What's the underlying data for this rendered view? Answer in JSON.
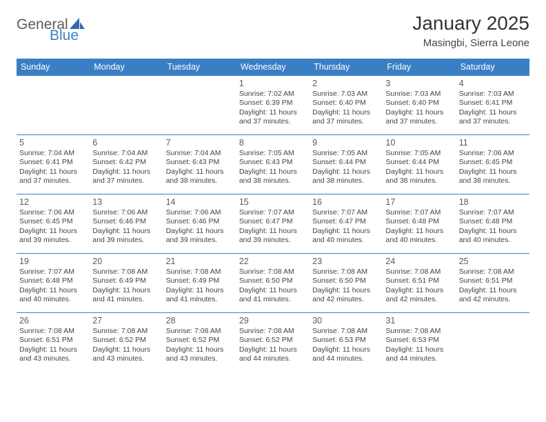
{
  "logo": {
    "general": "General",
    "blue": "Blue"
  },
  "title": "January 2025",
  "location": "Masingbi, Sierra Leone",
  "colors": {
    "header_bg": "#3a7fc4",
    "header_text": "#ffffff",
    "border": "#3a7fc4",
    "text": "#444444",
    "daynum": "#5a5a5a",
    "page_bg": "#ffffff"
  },
  "typography": {
    "title_fontsize": 28,
    "location_fontsize": 15,
    "weekday_fontsize": 12.5,
    "daynum_fontsize": 12.5,
    "info_fontsize": 10.5
  },
  "weekdays": [
    "Sunday",
    "Monday",
    "Tuesday",
    "Wednesday",
    "Thursday",
    "Friday",
    "Saturday"
  ],
  "weeks": [
    [
      null,
      null,
      null,
      {
        "day": "1",
        "sunrise": "Sunrise: 7:02 AM",
        "sunset": "Sunset: 6:39 PM",
        "daylight": "Daylight: 11 hours and 37 minutes."
      },
      {
        "day": "2",
        "sunrise": "Sunrise: 7:03 AM",
        "sunset": "Sunset: 6:40 PM",
        "daylight": "Daylight: 11 hours and 37 minutes."
      },
      {
        "day": "3",
        "sunrise": "Sunrise: 7:03 AM",
        "sunset": "Sunset: 6:40 PM",
        "daylight": "Daylight: 11 hours and 37 minutes."
      },
      {
        "day": "4",
        "sunrise": "Sunrise: 7:03 AM",
        "sunset": "Sunset: 6:41 PM",
        "daylight": "Daylight: 11 hours and 37 minutes."
      }
    ],
    [
      {
        "day": "5",
        "sunrise": "Sunrise: 7:04 AM",
        "sunset": "Sunset: 6:41 PM",
        "daylight": "Daylight: 11 hours and 37 minutes."
      },
      {
        "day": "6",
        "sunrise": "Sunrise: 7:04 AM",
        "sunset": "Sunset: 6:42 PM",
        "daylight": "Daylight: 11 hours and 37 minutes."
      },
      {
        "day": "7",
        "sunrise": "Sunrise: 7:04 AM",
        "sunset": "Sunset: 6:43 PM",
        "daylight": "Daylight: 11 hours and 38 minutes."
      },
      {
        "day": "8",
        "sunrise": "Sunrise: 7:05 AM",
        "sunset": "Sunset: 6:43 PM",
        "daylight": "Daylight: 11 hours and 38 minutes."
      },
      {
        "day": "9",
        "sunrise": "Sunrise: 7:05 AM",
        "sunset": "Sunset: 6:44 PM",
        "daylight": "Daylight: 11 hours and 38 minutes."
      },
      {
        "day": "10",
        "sunrise": "Sunrise: 7:05 AM",
        "sunset": "Sunset: 6:44 PM",
        "daylight": "Daylight: 11 hours and 38 minutes."
      },
      {
        "day": "11",
        "sunrise": "Sunrise: 7:06 AM",
        "sunset": "Sunset: 6:45 PM",
        "daylight": "Daylight: 11 hours and 38 minutes."
      }
    ],
    [
      {
        "day": "12",
        "sunrise": "Sunrise: 7:06 AM",
        "sunset": "Sunset: 6:45 PM",
        "daylight": "Daylight: 11 hours and 39 minutes."
      },
      {
        "day": "13",
        "sunrise": "Sunrise: 7:06 AM",
        "sunset": "Sunset: 6:46 PM",
        "daylight": "Daylight: 11 hours and 39 minutes."
      },
      {
        "day": "14",
        "sunrise": "Sunrise: 7:06 AM",
        "sunset": "Sunset: 6:46 PM",
        "daylight": "Daylight: 11 hours and 39 minutes."
      },
      {
        "day": "15",
        "sunrise": "Sunrise: 7:07 AM",
        "sunset": "Sunset: 6:47 PM",
        "daylight": "Daylight: 11 hours and 39 minutes."
      },
      {
        "day": "16",
        "sunrise": "Sunrise: 7:07 AM",
        "sunset": "Sunset: 6:47 PM",
        "daylight": "Daylight: 11 hours and 40 minutes."
      },
      {
        "day": "17",
        "sunrise": "Sunrise: 7:07 AM",
        "sunset": "Sunset: 6:48 PM",
        "daylight": "Daylight: 11 hours and 40 minutes."
      },
      {
        "day": "18",
        "sunrise": "Sunrise: 7:07 AM",
        "sunset": "Sunset: 6:48 PM",
        "daylight": "Daylight: 11 hours and 40 minutes."
      }
    ],
    [
      {
        "day": "19",
        "sunrise": "Sunrise: 7:07 AM",
        "sunset": "Sunset: 6:48 PM",
        "daylight": "Daylight: 11 hours and 40 minutes."
      },
      {
        "day": "20",
        "sunrise": "Sunrise: 7:08 AM",
        "sunset": "Sunset: 6:49 PM",
        "daylight": "Daylight: 11 hours and 41 minutes."
      },
      {
        "day": "21",
        "sunrise": "Sunrise: 7:08 AM",
        "sunset": "Sunset: 6:49 PM",
        "daylight": "Daylight: 11 hours and 41 minutes."
      },
      {
        "day": "22",
        "sunrise": "Sunrise: 7:08 AM",
        "sunset": "Sunset: 6:50 PM",
        "daylight": "Daylight: 11 hours and 41 minutes."
      },
      {
        "day": "23",
        "sunrise": "Sunrise: 7:08 AM",
        "sunset": "Sunset: 6:50 PM",
        "daylight": "Daylight: 11 hours and 42 minutes."
      },
      {
        "day": "24",
        "sunrise": "Sunrise: 7:08 AM",
        "sunset": "Sunset: 6:51 PM",
        "daylight": "Daylight: 11 hours and 42 minutes."
      },
      {
        "day": "25",
        "sunrise": "Sunrise: 7:08 AM",
        "sunset": "Sunset: 6:51 PM",
        "daylight": "Daylight: 11 hours and 42 minutes."
      }
    ],
    [
      {
        "day": "26",
        "sunrise": "Sunrise: 7:08 AM",
        "sunset": "Sunset: 6:51 PM",
        "daylight": "Daylight: 11 hours and 43 minutes."
      },
      {
        "day": "27",
        "sunrise": "Sunrise: 7:08 AM",
        "sunset": "Sunset: 6:52 PM",
        "daylight": "Daylight: 11 hours and 43 minutes."
      },
      {
        "day": "28",
        "sunrise": "Sunrise: 7:08 AM",
        "sunset": "Sunset: 6:52 PM",
        "daylight": "Daylight: 11 hours and 43 minutes."
      },
      {
        "day": "29",
        "sunrise": "Sunrise: 7:08 AM",
        "sunset": "Sunset: 6:52 PM",
        "daylight": "Daylight: 11 hours and 44 minutes."
      },
      {
        "day": "30",
        "sunrise": "Sunrise: 7:08 AM",
        "sunset": "Sunset: 6:53 PM",
        "daylight": "Daylight: 11 hours and 44 minutes."
      },
      {
        "day": "31",
        "sunrise": "Sunrise: 7:08 AM",
        "sunset": "Sunset: 6:53 PM",
        "daylight": "Daylight: 11 hours and 44 minutes."
      },
      null
    ]
  ]
}
